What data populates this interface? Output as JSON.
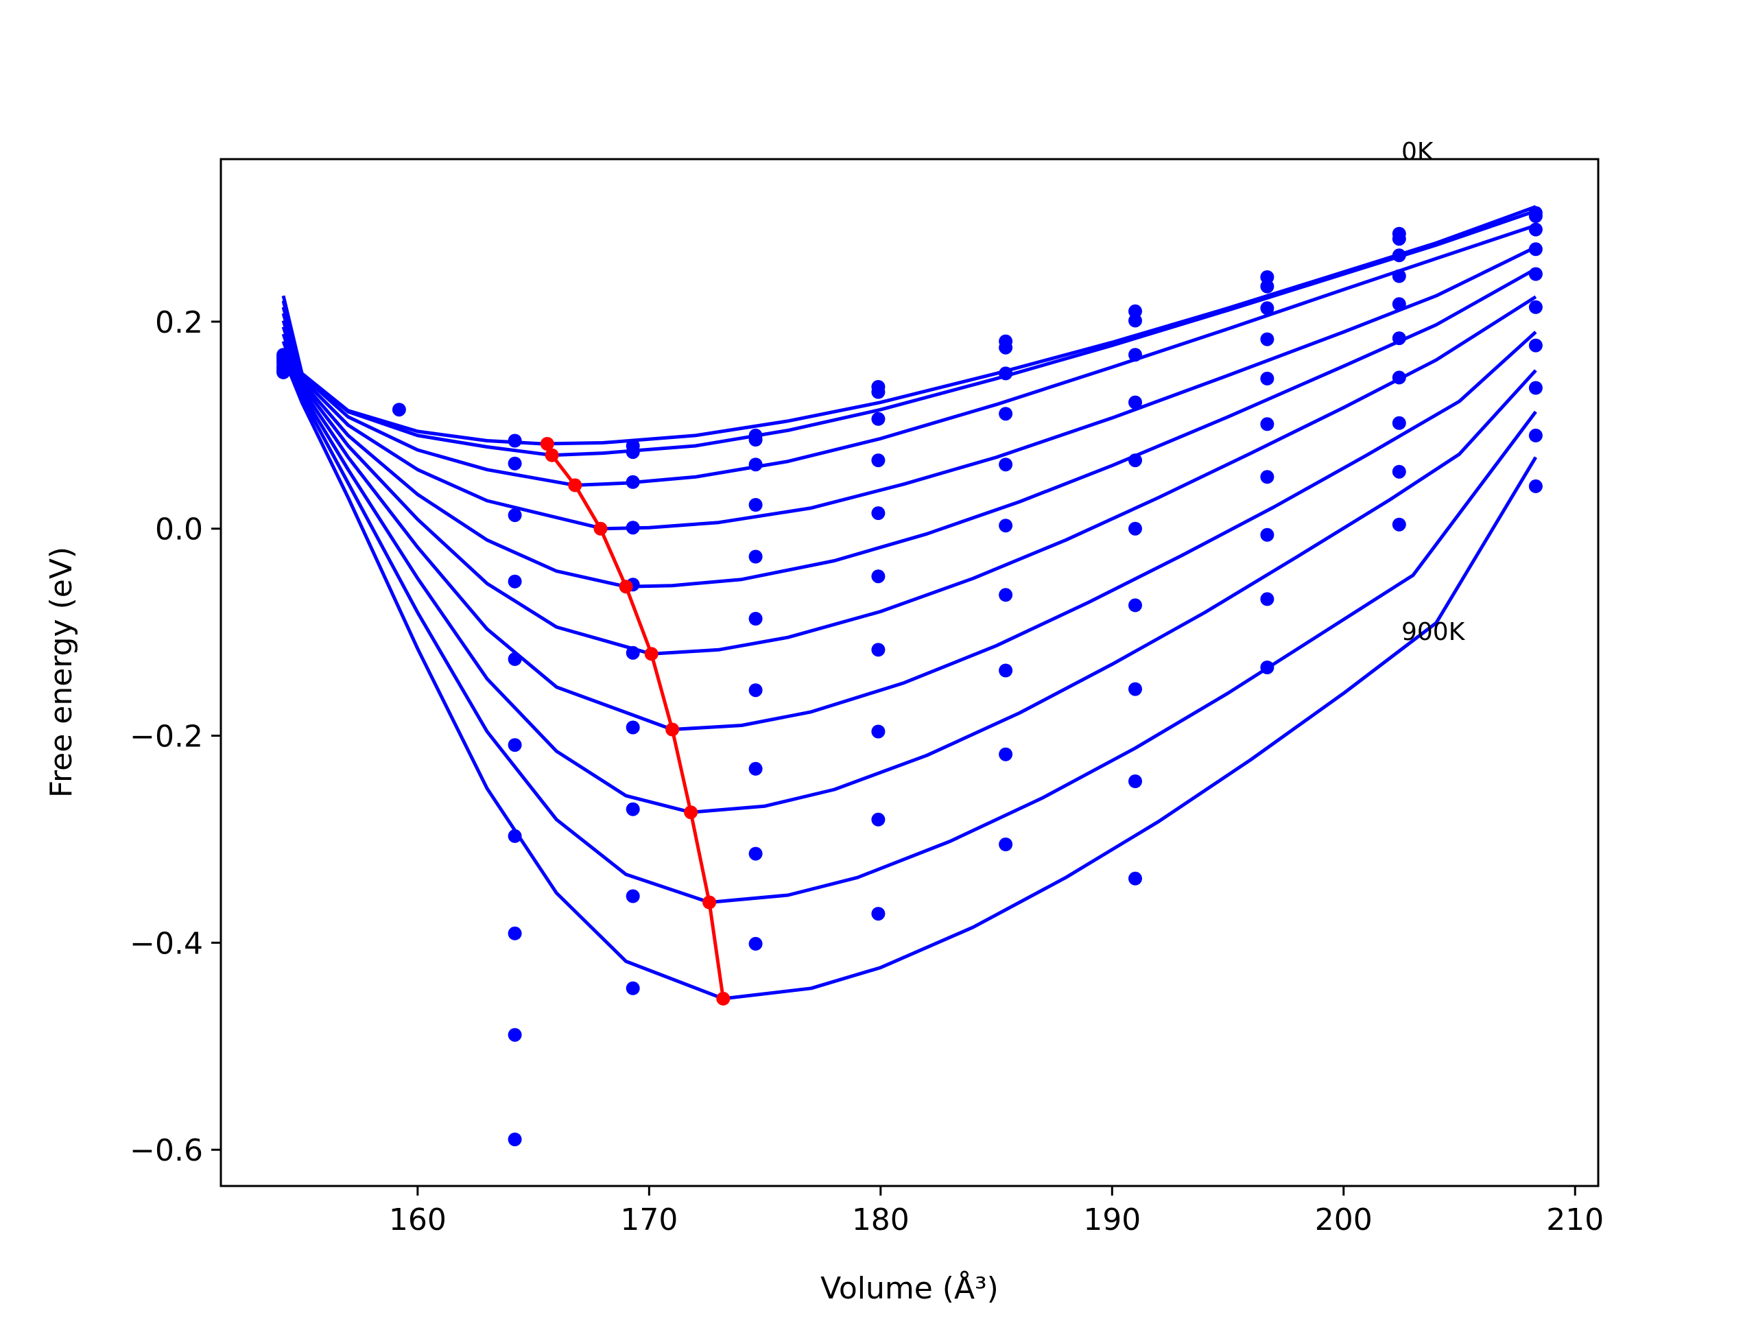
{
  "chart_data": {
    "type": "line",
    "xlabel": "Volume (Å³)",
    "ylabel": "Free energy (eV)",
    "xlim": [
      151.5,
      211.0
    ],
    "ylim": [
      -0.635,
      0.357
    ],
    "xticks": [
      160,
      170,
      180,
      190,
      200,
      210
    ],
    "yticks": [
      -0.6,
      -0.4,
      -0.2,
      0.0,
      0.2
    ],
    "xtick_labels": [
      "160",
      "170",
      "180",
      "190",
      "200",
      "210"
    ],
    "ytick_labels": [
      "−0.6",
      "−0.4",
      "−0.2",
      "0.0",
      "0.2"
    ],
    "grid": false,
    "legend": "none",
    "annotations": [
      {
        "text": "0K",
        "x": 202.5,
        "y": 0.34
      },
      {
        "text": "900K",
        "x": 202.5,
        "y": -0.105
      }
    ],
    "colors": {
      "fit_curves": "#0000ff",
      "data_points": "#0000ff",
      "minimum_path": "#ff0000"
    },
    "volumes": [
      154.2,
      159.2,
      164.2,
      169.3,
      174.6,
      179.9,
      185.4,
      191.0,
      196.7,
      202.4,
      208.3
    ],
    "data_points": [
      {
        "x": 154.2,
        "y": [
          0.151,
          0.152,
          0.153,
          0.155,
          0.157,
          0.16,
          0.162,
          0.164,
          0.166,
          0.168
        ]
      },
      {
        "x": 159.2,
        "y": [
          0.115
        ]
      },
      {
        "x": 164.2,
        "y": [
          0.085,
          0.063,
          0.013,
          -0.051,
          -0.126,
          -0.209,
          -0.297,
          -0.391,
          -0.489,
          -0.59
        ]
      },
      {
        "x": 169.3,
        "y": [
          0.08,
          0.074,
          0.045,
          0.001,
          -0.054,
          -0.12,
          -0.192,
          -0.271,
          -0.355,
          -0.444
        ]
      },
      {
        "x": 174.6,
        "y": [
          0.09,
          0.086,
          0.062,
          0.023,
          -0.027,
          -0.087,
          -0.156,
          -0.232,
          -0.314,
          -0.401
        ]
      },
      {
        "x": 179.9,
        "y": [
          0.137,
          0.132,
          0.106,
          0.066,
          0.015,
          -0.046,
          -0.117,
          -0.196,
          -0.281,
          -0.372
        ]
      },
      {
        "x": 185.4,
        "y": [
          0.181,
          0.175,
          0.15,
          0.111,
          0.062,
          0.003,
          -0.064,
          -0.137,
          -0.218,
          -0.305
        ]
      },
      {
        "x": 191.0,
        "y": [
          0.21,
          0.201,
          0.168,
          0.122,
          0.066,
          0.0,
          -0.074,
          -0.155,
          -0.244,
          -0.338
        ]
      },
      {
        "x": 196.7,
        "y": [
          0.243,
          0.234,
          0.213,
          0.183,
          0.145,
          0.101,
          0.05,
          -0.006,
          -0.068,
          -0.134
        ]
      },
      {
        "x": 202.4,
        "y": [
          0.285,
          0.28,
          0.264,
          0.244,
          0.217,
          0.184,
          0.146,
          0.102,
          0.055,
          0.004
        ]
      },
      {
        "x": 208.3,
        "y": [
          0.305,
          0.302,
          0.289,
          0.27,
          0.246,
          0.214,
          0.177,
          0.136,
          0.09,
          0.041
        ]
      }
    ],
    "series_fits": [
      {
        "x": [
          154.2,
          155.0,
          157.0,
          160.0,
          163.0,
          165.4,
          168.0,
          172.0,
          176.0,
          180.0,
          185.0,
          190.0,
          195.0,
          200.0,
          204.0,
          208.3
        ],
        "y": [
          0.225,
          0.15,
          0.114,
          0.094,
          0.085,
          0.082,
          0.083,
          0.09,
          0.104,
          0.122,
          0.15,
          0.18,
          0.213,
          0.248,
          0.276,
          0.311
        ]
      },
      {
        "x": [
          154.2,
          155.0,
          157.0,
          160.0,
          163.0,
          165.8,
          168.0,
          172.0,
          176.0,
          180.0,
          185.0,
          190.0,
          195.0,
          200.0,
          204.0,
          208.3
        ],
        "y": [
          0.22,
          0.15,
          0.113,
          0.09,
          0.079,
          0.071,
          0.073,
          0.08,
          0.095,
          0.115,
          0.145,
          0.177,
          0.211,
          0.246,
          0.274,
          0.307
        ]
      },
      {
        "x": [
          154.2,
          155.0,
          157.0,
          160.0,
          163.0,
          166.8,
          169.0,
          172.0,
          176.0,
          180.0,
          185.0,
          190.0,
          195.0,
          200.0,
          204.0,
          208.3
        ],
        "y": [
          0.214,
          0.148,
          0.108,
          0.076,
          0.057,
          0.042,
          0.044,
          0.05,
          0.065,
          0.087,
          0.12,
          0.156,
          0.193,
          0.231,
          0.261,
          0.293
        ]
      },
      {
        "x": [
          154.2,
          155.0,
          157.0,
          160.0,
          163.0,
          168.0,
          170.0,
          173.0,
          177.0,
          181.0,
          185.0,
          190.0,
          195.0,
          200.0,
          204.0,
          208.3
        ],
        "y": [
          0.208,
          0.145,
          0.1,
          0.057,
          0.027,
          0.0,
          0.001,
          0.006,
          0.02,
          0.043,
          0.069,
          0.107,
          0.148,
          0.19,
          0.225,
          0.272
        ]
      },
      {
        "x": [
          154.2,
          155.0,
          157.0,
          160.0,
          163.0,
          166.0,
          169.0,
          171.0,
          174.0,
          178.0,
          182.0,
          186.0,
          190.0,
          195.0,
          200.0,
          204.0,
          208.3
        ],
        "y": [
          0.201,
          0.142,
          0.09,
          0.033,
          -0.011,
          -0.041,
          -0.056,
          -0.055,
          -0.049,
          -0.031,
          -0.005,
          0.026,
          0.061,
          0.108,
          0.157,
          0.197,
          0.251
        ]
      },
      {
        "x": [
          154.2,
          155.0,
          157.0,
          160.0,
          163.0,
          166.0,
          170.1,
          173.0,
          176.0,
          180.0,
          184.0,
          188.0,
          192.0,
          196.0,
          200.0,
          204.0,
          208.3
        ],
        "y": [
          0.195,
          0.139,
          0.08,
          0.009,
          -0.053,
          -0.095,
          -0.121,
          -0.117,
          -0.105,
          -0.08,
          -0.048,
          -0.011,
          0.03,
          0.073,
          0.117,
          0.163,
          0.224
        ]
      },
      {
        "x": [
          154.2,
          155.0,
          157.0,
          160.0,
          163.0,
          166.0,
          171.0,
          174.0,
          177.0,
          181.0,
          185.0,
          189.0,
          193.0,
          197.0,
          201.0,
          205.0,
          208.3
        ],
        "y": [
          0.188,
          0.135,
          0.069,
          -0.018,
          -0.097,
          -0.153,
          -0.194,
          -0.19,
          -0.177,
          -0.149,
          -0.113,
          -0.071,
          -0.026,
          0.021,
          0.071,
          0.123,
          0.19
        ]
      },
      {
        "x": [
          154.2,
          155.0,
          157.0,
          160.0,
          163.0,
          166.0,
          169.0,
          171.8,
          175.0,
          178.0,
          182.0,
          186.0,
          190.0,
          194.0,
          198.0,
          202.0,
          205.0,
          208.3
        ],
        "y": [
          0.181,
          0.131,
          0.057,
          -0.048,
          -0.145,
          -0.215,
          -0.258,
          -0.274,
          -0.268,
          -0.252,
          -0.219,
          -0.178,
          -0.131,
          -0.081,
          -0.027,
          0.028,
          0.072,
          0.153
        ]
      },
      {
        "x": [
          154.2,
          155.0,
          157.0,
          160.0,
          163.0,
          166.0,
          169.0,
          172.6,
          176.0,
          179.0,
          183.0,
          187.0,
          191.0,
          195.0,
          199.0,
          203.0,
          208.3
        ],
        "y": [
          0.173,
          0.127,
          0.044,
          -0.081,
          -0.196,
          -0.281,
          -0.334,
          -0.361,
          -0.354,
          -0.337,
          -0.302,
          -0.26,
          -0.212,
          -0.159,
          -0.102,
          -0.045,
          0.113
        ]
      },
      {
        "x": [
          154.2,
          155.0,
          157.0,
          160.0,
          163.0,
          166.0,
          169.0,
          173.2,
          177.0,
          180.0,
          184.0,
          188.0,
          192.0,
          196.0,
          200.0,
          204.0,
          208.3
        ],
        "y": [
          0.166,
          0.122,
          0.03,
          -0.116,
          -0.251,
          -0.352,
          -0.418,
          -0.454,
          -0.444,
          -0.424,
          -0.385,
          -0.337,
          -0.283,
          -0.223,
          -0.159,
          -0.091,
          0.069
        ]
      }
    ],
    "minimum_path": {
      "x": [
        165.6,
        165.8,
        166.8,
        167.9,
        169.0,
        170.1,
        171.0,
        171.8,
        172.6,
        173.2
      ],
      "y": [
        0.082,
        0.071,
        0.042,
        0.0,
        -0.056,
        -0.121,
        -0.194,
        -0.274,
        -0.361,
        -0.454
      ]
    }
  }
}
